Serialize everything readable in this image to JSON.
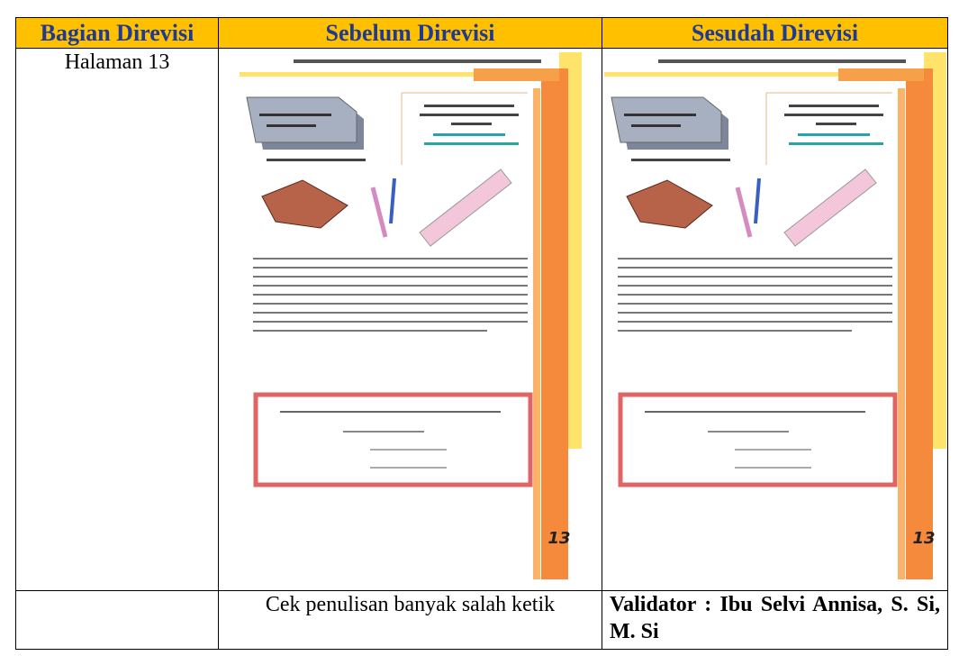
{
  "table": {
    "columns": [
      "Bagian Direvisi",
      "Sebelum Direvisi",
      "Sesudah Direvisi"
    ],
    "page": "Halaman 13",
    "note": "Cek penulisan banyak salah ketik",
    "validator": "Validator : Ibu Selvi Annisa, S. Si, M. Si"
  },
  "thumbnails": {
    "page_number": "13"
  }
}
